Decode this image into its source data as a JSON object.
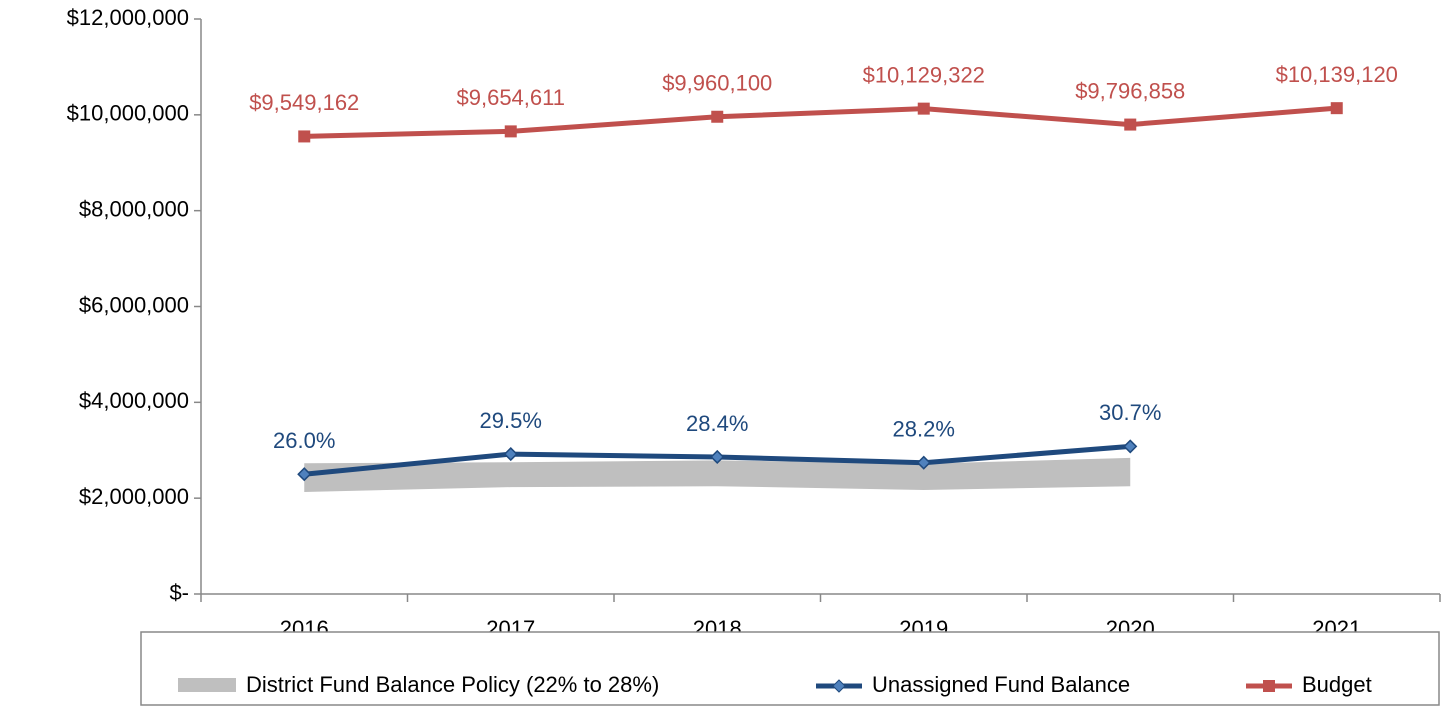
{
  "chart_data": {
    "type": "line",
    "categories": [
      "2016",
      "2017",
      "2018",
      "2019",
      "2020",
      "2021"
    ],
    "ylim": [
      0,
      12000000
    ],
    "yticks": [
      {
        "value": 0,
        "label": "$-"
      },
      {
        "value": 2000000,
        "label": "$2,000,000"
      },
      {
        "value": 4000000,
        "label": "$4,000,000"
      },
      {
        "value": 6000000,
        "label": "$6,000,000"
      },
      {
        "value": 8000000,
        "label": "$8,000,000"
      },
      {
        "value": 10000000,
        "label": "$10,000,000"
      },
      {
        "value": 12000000,
        "label": "$12,000,000"
      }
    ],
    "band": {
      "name": "District Fund Balance Policy (22% to 28%)",
      "color": "#bfbfbf",
      "low": [
        2130000,
        2230000,
        2250000,
        2170000,
        2250000
      ],
      "high": [
        2730000,
        2750000,
        2790000,
        2720000,
        2840000
      ]
    },
    "series": [
      {
        "name": "Unassigned Fund Balance",
        "color": "#1f497d",
        "values": [
          2500000,
          2920000,
          2860000,
          2740000,
          3080000,
          null
        ],
        "value_labels": [
          "26.0%",
          "29.5%",
          "28.4%",
          "28.2%",
          "30.7%",
          null
        ]
      },
      {
        "name": "Budget",
        "color": "#c0504d",
        "values": [
          9549162,
          9654611,
          9960100,
          10129322,
          9796858,
          10139120
        ],
        "value_labels": [
          "$9,549,162",
          "$9,654,611",
          "$9,960,100",
          "$10,129,322",
          "$9,796,858",
          "$10,139,120"
        ]
      }
    ],
    "legend": "bottom"
  }
}
